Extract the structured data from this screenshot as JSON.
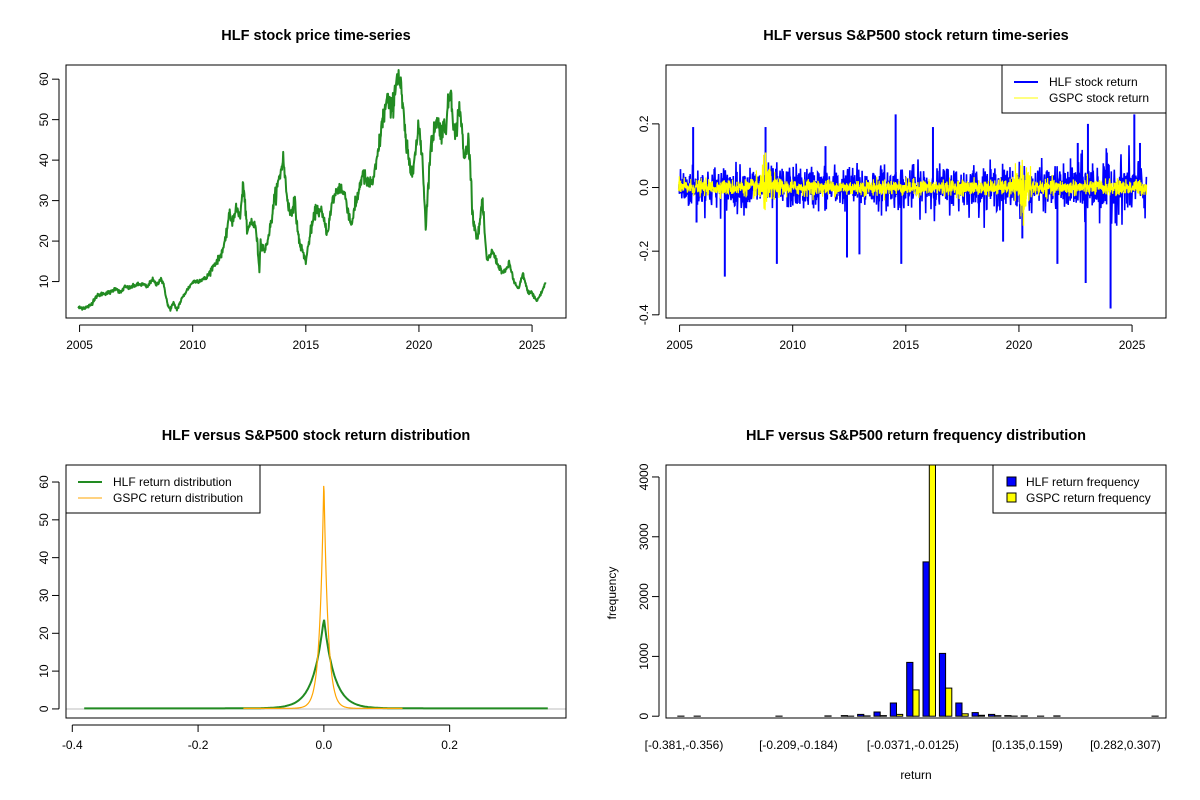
{
  "chart_data": [
    {
      "id": "price",
      "type": "line",
      "title": "HLF stock price time-series",
      "xlabel": "",
      "ylabel": "",
      "xlim": [
        2004.4,
        2026.5
      ],
      "ylim": [
        1,
        63.5
      ],
      "xticks": [
        2005,
        2010,
        2015,
        2020,
        2025
      ],
      "xtick_labels": [
        "2005",
        "2010",
        "2015",
        "2020",
        "2025"
      ],
      "yticks": [
        10,
        20,
        30,
        40,
        50,
        60
      ],
      "ytick_labels": [
        "10",
        "20",
        "30",
        "40",
        "50",
        "60"
      ],
      "color": "#228B22",
      "series": [
        {
          "name": "HLF",
          "x": [
            2004.95,
            2005.3,
            2005.5,
            2005.7,
            2006.0,
            2006.4,
            2006.6,
            2006.8,
            2007.0,
            2007.2,
            2007.5,
            2007.8,
            2008.0,
            2008.2,
            2008.4,
            2008.6,
            2008.75,
            2008.9,
            2009.0,
            2009.15,
            2009.3,
            2009.5,
            2009.7,
            2010.0,
            2010.3,
            2010.6,
            2010.9,
            2011.2,
            2011.45,
            2011.6,
            2011.75,
            2011.9,
            2012.1,
            2012.25,
            2012.4,
            2012.6,
            2012.8,
            2012.95,
            2013.0,
            2013.2,
            2013.45,
            2013.6,
            2013.85,
            2014.0,
            2014.15,
            2014.3,
            2014.5,
            2014.7,
            2014.85,
            2015.0,
            2015.2,
            2015.45,
            2015.7,
            2015.95,
            2016.2,
            2016.5,
            2016.75,
            2017.0,
            2017.25,
            2017.5,
            2017.75,
            2018.0,
            2018.2,
            2018.4,
            2018.6,
            2018.8,
            2019.05,
            2019.2,
            2019.45,
            2019.65,
            2019.85,
            2020.0,
            2020.15,
            2020.3,
            2020.5,
            2020.75,
            2021.0,
            2021.2,
            2021.4,
            2021.6,
            2021.8,
            2022.0,
            2022.2,
            2022.4,
            2022.6,
            2022.8,
            2023.0,
            2023.25,
            2023.5,
            2023.75,
            2024.0,
            2024.2,
            2024.4,
            2024.6,
            2024.8,
            2025.0,
            2025.2,
            2025.4,
            2025.6
          ],
          "y": [
            3.5,
            3.6,
            4.2,
            6.2,
            7,
            7.4,
            8.5,
            7.2,
            8.7,
            8.4,
            9.2,
            9.3,
            8.6,
            10.6,
            9.2,
            10.8,
            8.5,
            4,
            3.2,
            4.6,
            3.1,
            5.5,
            7.5,
            9.9,
            10.3,
            10.8,
            13.8,
            16,
            20,
            26.5,
            25,
            28,
            26.2,
            34.5,
            22,
            25,
            23,
            12.8,
            20,
            17.5,
            24,
            30,
            36,
            40.5,
            32,
            26.5,
            30,
            20,
            17.5,
            15,
            22,
            28,
            27,
            22,
            30.5,
            33.5,
            31,
            24,
            30,
            36.7,
            34,
            35,
            42,
            50,
            55,
            52,
            61.5,
            58,
            43,
            37,
            42,
            48,
            41,
            23.5,
            42,
            50,
            47,
            49,
            58,
            45,
            54,
            40,
            45,
            25,
            20.5,
            30,
            15,
            17.5,
            14,
            12,
            14.5,
            10,
            8,
            12,
            7.5,
            7.2,
            5.2,
            7,
            9.8
          ]
        }
      ]
    },
    {
      "id": "returns",
      "type": "line",
      "title": "HLF versus S&P500 stock return time-series",
      "xlabel": "",
      "ylabel": "",
      "xlim": [
        2004.4,
        2026.5
      ],
      "ylim": [
        -0.41,
        0.385
      ],
      "xticks": [
        2005,
        2010,
        2015,
        2020,
        2025
      ],
      "xtick_labels": [
        "2005",
        "2010",
        "2015",
        "2020",
        "2025"
      ],
      "yticks": [
        -0.4,
        -0.2,
        0.0,
        0.2
      ],
      "ytick_labels": [
        "-0.4",
        "-0.2",
        "0.0",
        "0.2"
      ],
      "legend": {
        "position": "top-right",
        "entries": [
          {
            "label": "HLF stock return",
            "color": "#0000FF"
          },
          {
            "label": "GSPC stock return",
            "color": "#FFFF00"
          }
        ]
      },
      "series": [
        {
          "name": "HLF stock return",
          "color": "#0000FF",
          "spikes_x": [
            2005.6,
            2005.75,
            2007.0,
            2008.8,
            2009.3,
            2011.45,
            2012.4,
            2012.95,
            2014.55,
            2014.8,
            2016.2,
            2019.3,
            2020.15,
            2021.7,
            2022.6,
            2022.95,
            2023.05,
            2024.05,
            2025.1,
            2025.35
          ],
          "spikes_y": [
            0.19,
            -0.11,
            -0.28,
            0.19,
            -0.24,
            0.13,
            -0.22,
            -0.21,
            0.23,
            -0.24,
            0.19,
            -0.17,
            -0.16,
            -0.24,
            0.14,
            -0.3,
            0.2,
            -0.38,
            0.23,
            0.14
          ],
          "typical_amplitude": 0.045
        },
        {
          "name": "GSPC stock return",
          "color": "#FFFF00",
          "peaks_x": [
            2008.8,
            2020.2
          ],
          "peaks_y": [
            0.11,
            -0.12
          ],
          "typical_amplitude": 0.012
        }
      ]
    },
    {
      "id": "density",
      "type": "line",
      "title": "HLF versus S&P500 stock return distribution",
      "xlabel": "",
      "ylabel": "",
      "xlim": [
        -0.41,
        0.385
      ],
      "ylim": [
        -2.4,
        64.5
      ],
      "xticks": [
        -0.4,
        -0.2,
        0.0,
        0.2
      ],
      "xtick_labels": [
        "-0.4",
        "-0.2",
        "0.0",
        "0.2"
      ],
      "yticks": [
        0,
        10,
        20,
        30,
        40,
        50,
        60
      ],
      "ytick_labels": [
        "0",
        "10",
        "20",
        "30",
        "40",
        "50",
        "60"
      ],
      "legend": {
        "position": "top-left",
        "entries": [
          {
            "label": "HLF return distribution",
            "color": "#228B22"
          },
          {
            "label": "GSPC return distribution",
            "color": "#FFA500"
          }
        ]
      },
      "series": [
        {
          "name": "HLF return distribution",
          "color": "#228B22",
          "peak": 24,
          "x_range": [
            -0.381,
            0.356
          ],
          "scale": 0.0165
        },
        {
          "name": "GSPC return distribution",
          "color": "#FFA500",
          "peak": 61,
          "x_range": [
            -0.128,
            0.125
          ],
          "scale": 0.0065
        }
      ]
    },
    {
      "id": "histogram",
      "type": "bar",
      "title": "HLF versus S&P500 return frequency distribution",
      "xlabel": "return",
      "ylabel": "frequency",
      "ylim": [
        -30,
        4200
      ],
      "yticks": [
        0,
        1000,
        2000,
        3000,
        4000
      ],
      "ytick_labels": [
        "0",
        "1000",
        "2000",
        "3000",
        "4000"
      ],
      "categories": [
        "[-0.381,-0.356)",
        "[-0.356,-0.332)",
        "[-0.332,-0.307)",
        "[-0.307,-0.283)",
        "[-0.283,-0.258)",
        "[-0.258,-0.233)",
        "[-0.233,-0.209)",
        "[-0.209,-0.184)",
        "[-0.184,-0.16)",
        "[-0.16,-0.135)",
        "[-0.135,-0.11)",
        "[-0.11,-0.0862)",
        "[-0.0862,-0.0617)",
        "[-0.0617,-0.0371)",
        "[-0.0371,-0.0125)",
        "[-0.0125,0.0121)",
        "[0.0121,0.0367)",
        "[0.0367,0.0612)",
        "[0.0612,0.0858)",
        "[0.0858,0.11)",
        "[0.11,0.135)",
        "[0.135,0.159)",
        "[0.159,0.184)",
        "[0.184,0.209)",
        "[0.209,0.233)",
        "[0.233,0.258)",
        "[0.258,0.282)",
        "[0.282,0.307)",
        "[0.307,0.331)",
        "[0.331,0.356)"
      ],
      "shown_labels": [
        0,
        7,
        14,
        21,
        27
      ],
      "legend": {
        "position": "top-right",
        "entries": [
          {
            "label": "HLF return frequency",
            "color": "#0000FF"
          },
          {
            "label": "GSPC return frequency",
            "color": "#FFFF00"
          }
        ]
      },
      "series": [
        {
          "name": "HLF return frequency",
          "color": "#0000FF",
          "values": [
            1,
            1,
            0,
            0,
            0,
            0,
            1,
            0,
            0,
            5,
            10,
            30,
            70,
            220,
            900,
            2580,
            1050,
            220,
            60,
            30,
            10,
            5,
            1,
            5,
            0,
            0,
            0,
            0,
            0,
            1
          ]
        },
        {
          "name": "GSPC return frequency",
          "color": "#FFFF00",
          "values": [
            0,
            0,
            0,
            0,
            0,
            0,
            0,
            0,
            0,
            0,
            2,
            5,
            10,
            30,
            440,
            4200,
            470,
            40,
            15,
            8,
            2,
            0,
            0,
            0,
            0,
            0,
            0,
            0,
            0,
            0
          ]
        }
      ]
    }
  ]
}
